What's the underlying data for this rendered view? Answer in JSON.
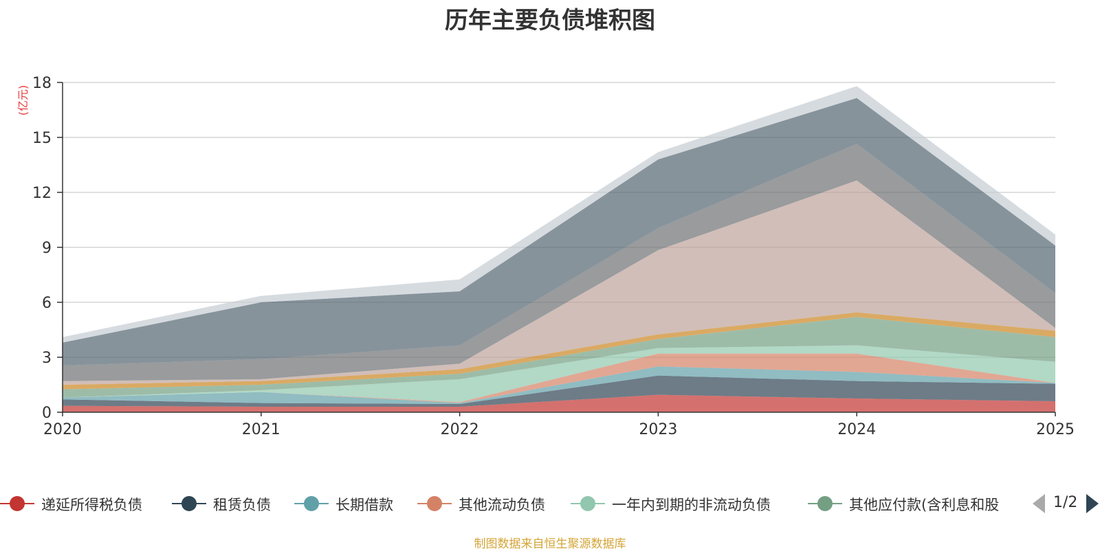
{
  "chart_data": {
    "type": "area",
    "stacked": true,
    "title": "历年主要负债堆积图",
    "unit": "(亿元)",
    "source": "制图数据来自恒生聚源数据库",
    "categories": [
      "2020",
      "2021",
      "2022",
      "2023",
      "2024",
      "2025"
    ],
    "ylim": [
      0,
      18
    ],
    "yticks": [
      0,
      3,
      6,
      9,
      12,
      15,
      18
    ],
    "yticklabels": [
      "0",
      "3",
      "6",
      "9",
      "12",
      "15",
      "18"
    ],
    "grid": true,
    "series": [
      {
        "name": "递延所得税负债",
        "color": "#c23531",
        "values": [
          0.35,
          0.3,
          0.3,
          0.95,
          0.75,
          0.6
        ],
        "legend": true
      },
      {
        "name": "租赁负债",
        "color": "#2f4554",
        "values": [
          0.35,
          0.2,
          0.15,
          1.05,
          0.95,
          0.95
        ],
        "legend": true
      },
      {
        "name": "长期借款",
        "color": "#61a0a8",
        "values": [
          0.1,
          0.6,
          0.05,
          0.5,
          0.5,
          0.05
        ],
        "legend": true
      },
      {
        "name": "其他流动负债",
        "color": "#d48265",
        "values": [
          0.0,
          0.0,
          0.05,
          0.7,
          1.0,
          0.0
        ],
        "legend": true
      },
      {
        "name": "一年内到期的非流动负债",
        "color": "#91c7ae",
        "values": [
          0.0,
          0.1,
          1.25,
          0.3,
          0.45,
          1.15
        ],
        "legend": true
      },
      {
        "name": "其他应付款(含利息和股",
        "color": "#749f83",
        "values": [
          0.45,
          0.3,
          0.3,
          0.5,
          1.55,
          1.35
        ],
        "legend": true
      },
      {
        "name": "",
        "color": "#ca8622",
        "values": [
          0.25,
          0.2,
          0.25,
          0.25,
          0.25,
          0.35
        ],
        "legend": false
      },
      {
        "name": "",
        "color": "#bda29a",
        "values": [
          0.2,
          0.1,
          0.3,
          4.6,
          7.2,
          0.15
        ],
        "legend": false
      },
      {
        "name": "",
        "color": "#6e7074",
        "values": [
          0.85,
          1.1,
          1.0,
          1.2,
          2.0,
          1.9
        ],
        "legend": false
      },
      {
        "name": "",
        "color": "#546570",
        "values": [
          1.25,
          3.1,
          2.95,
          3.75,
          2.5,
          2.6
        ],
        "legend": false
      },
      {
        "name": "",
        "color": "#c4ccd3",
        "values": [
          0.3,
          0.35,
          0.65,
          0.4,
          0.65,
          0.6
        ],
        "legend": false
      }
    ]
  },
  "pager": {
    "text": "1/2",
    "prev_icon": "triangle-left-icon",
    "next_icon": "triangle-right-icon"
  }
}
